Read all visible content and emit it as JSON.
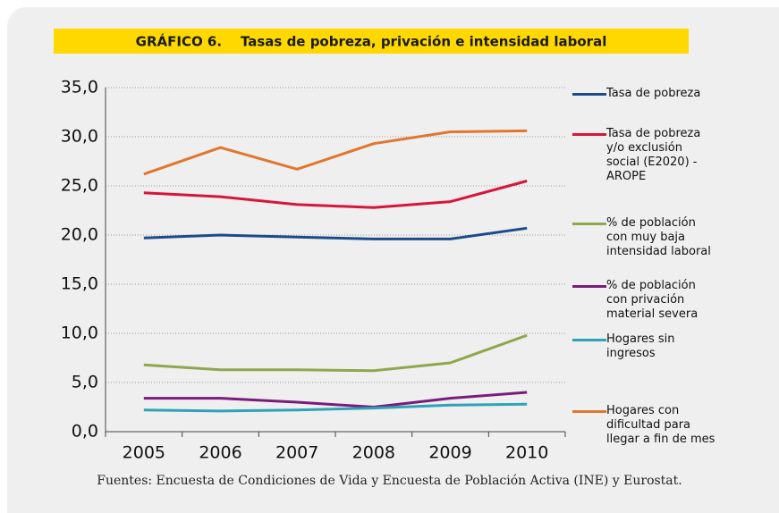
{
  "chart_data": {
    "type": "line",
    "title": "GRÁFICO 6.    Tasas de pobreza, privación e intensidad laboral",
    "categories": [
      "2005",
      "2006",
      "2007",
      "2008",
      "2009",
      "2010"
    ],
    "series": [
      {
        "name": "Tasa de pobreza",
        "color": "#1d4b8a",
        "values": [
          19.7,
          20.0,
          19.8,
          19.6,
          19.6,
          20.7
        ]
      },
      {
        "name": "Tasa de pobreza y/o exclusión social (E2020) - AROPE",
        "color": "#d7153a",
        "values": [
          24.3,
          23.9,
          23.1,
          22.8,
          23.4,
          25.5
        ]
      },
      {
        "name": "% de población con muy baja intensidad laboral",
        "color": "#8fa74c",
        "values": [
          6.8,
          6.3,
          6.3,
          6.2,
          7.0,
          9.8
        ]
      },
      {
        "name": "% de población con privación material severa",
        "color": "#7a1c7c",
        "values": [
          3.4,
          3.4,
          3.0,
          2.5,
          3.4,
          4.0
        ]
      },
      {
        "name": "Hogares sin ingresos",
        "color": "#2ea3b7",
        "values": [
          2.2,
          2.1,
          2.2,
          2.4,
          2.7,
          2.8
        ]
      },
      {
        "name": "Hogares con dificultad para llegar a fin de mes",
        "color": "#e0772f",
        "values": [
          26.2,
          28.9,
          26.7,
          29.3,
          30.5,
          30.6
        ]
      }
    ],
    "ylim": [
      0,
      35
    ],
    "yticks": [
      {
        "value": 0,
        "label": "0,0"
      },
      {
        "value": 5,
        "label": "5,0"
      },
      {
        "value": 10,
        "label": "10,0"
      },
      {
        "value": 15,
        "label": "15,0"
      },
      {
        "value": 20,
        "label": "20,0"
      },
      {
        "value": 25,
        "label": "25,0"
      },
      {
        "value": 30,
        "label": "30,0"
      },
      {
        "value": 35,
        "label": "35,0"
      }
    ],
    "grid": true,
    "legend": "right"
  },
  "source": "Fuentes: Encuesta de Condiciones de Vida y Encuesta de Población Activa (INE) y Eurostat."
}
